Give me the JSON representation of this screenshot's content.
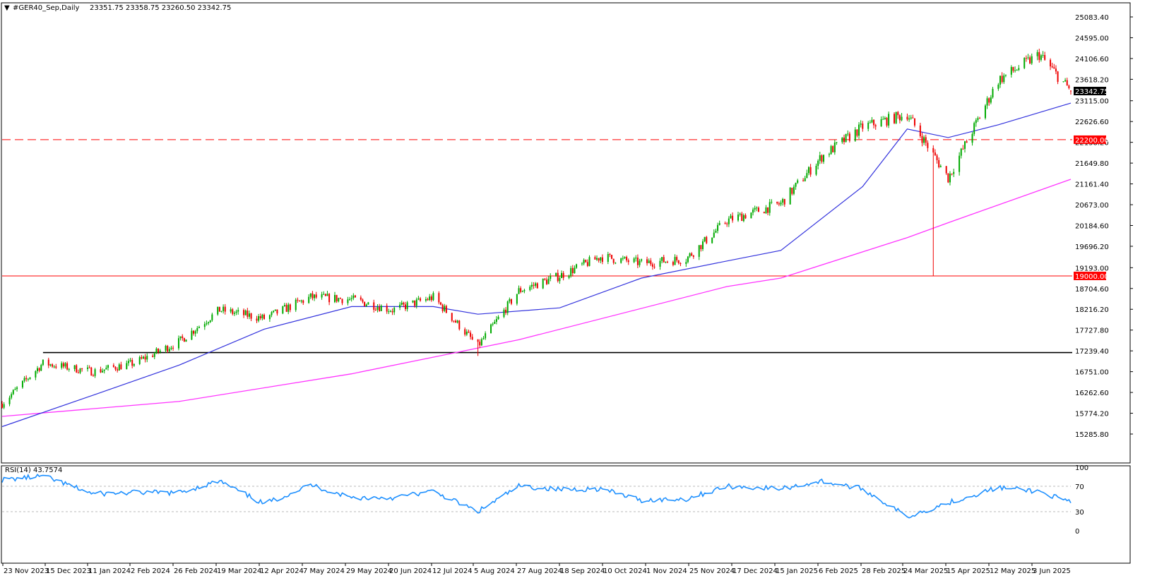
{
  "header": {
    "symbol_title": "#GER40_Sep,Daily",
    "ohlc_text": "23351.75 23358.75 23260.50 23342.75"
  },
  "rsi_title": "RSI(14) 43.7574",
  "price_axis_labels": [
    "25083.40",
    "24595.00",
    "24106.60",
    "23618.20",
    "23115.00",
    "22626.60",
    "22138.20",
    "21649.80",
    "21161.40",
    "20673.00",
    "20184.60",
    "19696.20",
    "19193.00",
    "18704.60",
    "18216.20",
    "17727.80",
    "17239.40",
    "16751.00",
    "16262.60",
    "15774.20",
    "15285.80"
  ],
  "rsi_axis_labels": [
    "100",
    "70",
    "30",
    "0"
  ],
  "date_labels": [
    "23 Nov 2023",
    "15 Dec 2023",
    "11 Jan 2024",
    "2 Feb 2024",
    "26 Feb 2024",
    "19 Mar 2024",
    "12 Apr 2024",
    "7 May 2024",
    "29 May 2024",
    "20 Jun 2024",
    "12 Jul 2024",
    "5 Aug 2024",
    "27 Aug 2024",
    "18 Sep 2024",
    "10 Oct 2024",
    "1 Nov 2024",
    "25 Nov 2024",
    "17 Dec 2024",
    "15 Jan 2025",
    "6 Feb 2025",
    "28 Feb 2025",
    "24 Mar 2025",
    "15 Apr 2025",
    "12 May 2025",
    "3 Jun 2025"
  ],
  "price_tags": {
    "current": "23342.75",
    "level_red_dashed": "22200.00",
    "level_red_solid": "19000.00"
  },
  "colors": {
    "up_candle": "#00aa00",
    "down_candle": "#ee0000",
    "ma_fast": "#3333dd",
    "ma_slow": "#ff33ff",
    "rsi_line": "#1e90ff",
    "level_red": "#ff0000",
    "level_black": "#000000"
  },
  "chart_data": {
    "type": "candlestick",
    "instrument": "#GER40_Sep",
    "timeframe": "Daily",
    "last_bar": {
      "open": 23351.75,
      "high": 23358.75,
      "low": 23260.5,
      "close": 23342.75
    },
    "close_path": [
      {
        "date": "2023-11-23",
        "close": 16000
      },
      {
        "date": "2023-12-15",
        "close": 16950
      },
      {
        "date": "2024-01-11",
        "close": 16750
      },
      {
        "date": "2024-02-02",
        "close": 16950
      },
      {
        "date": "2024-02-26",
        "close": 17450
      },
      {
        "date": "2024-03-19",
        "close": 18200
      },
      {
        "date": "2024-04-12",
        "close": 18000
      },
      {
        "date": "2024-05-07",
        "close": 18500
      },
      {
        "date": "2024-05-29",
        "close": 18450
      },
      {
        "date": "2024-06-20",
        "close": 18200
      },
      {
        "date": "2024-07-12",
        "close": 18500
      },
      {
        "date": "2024-08-05",
        "close": 17350
      },
      {
        "date": "2024-08-27",
        "close": 18650
      },
      {
        "date": "2024-09-18",
        "close": 19000
      },
      {
        "date": "2024-10-10",
        "close": 19450
      },
      {
        "date": "2024-11-01",
        "close": 19300
      },
      {
        "date": "2024-11-25",
        "close": 19400
      },
      {
        "date": "2024-12-17",
        "close": 20300
      },
      {
        "date": "2025-01-15",
        "close": 20700
      },
      {
        "date": "2025-02-06",
        "close": 21800
      },
      {
        "date": "2025-02-28",
        "close": 22500
      },
      {
        "date": "2025-03-24",
        "close": 22800
      },
      {
        "date": "2025-04-15",
        "close": 21300
      },
      {
        "date": "2025-05-12",
        "close": 23600
      },
      {
        "date": "2025-06-03",
        "close": 24200
      },
      {
        "date": "2025-06-20",
        "close": 23342.75
      }
    ],
    "ma_fast": [
      {
        "date": "2023-11-23",
        "value": 15460
      },
      {
        "date": "2024-01-11",
        "value": 16200
      },
      {
        "date": "2024-02-26",
        "value": 16900
      },
      {
        "date": "2024-04-12",
        "value": 17750
      },
      {
        "date": "2024-05-29",
        "value": 18280
      },
      {
        "date": "2024-07-12",
        "value": 18280
      },
      {
        "date": "2024-08-05",
        "value": 18100
      },
      {
        "date": "2024-09-18",
        "value": 18250
      },
      {
        "date": "2024-11-01",
        "value": 18950
      },
      {
        "date": "2024-12-17",
        "value": 19350
      },
      {
        "date": "2025-01-15",
        "value": 19600
      },
      {
        "date": "2025-02-28",
        "value": 21100
      },
      {
        "date": "2025-03-24",
        "value": 22450
      },
      {
        "date": "2025-04-15",
        "value": 22250
      },
      {
        "date": "2025-05-12",
        "value": 22550
      },
      {
        "date": "2025-06-20",
        "value": 23060
      }
    ],
    "ma_slow": [
      {
        "date": "2023-11-23",
        "value": 15700
      },
      {
        "date": "2024-02-26",
        "value": 16050
      },
      {
        "date": "2024-05-29",
        "value": 16700
      },
      {
        "date": "2024-08-27",
        "value": 17500
      },
      {
        "date": "2024-12-17",
        "value": 18750
      },
      {
        "date": "2025-01-15",
        "value": 18950
      },
      {
        "date": "2025-03-24",
        "value": 19900
      },
      {
        "date": "2025-04-15",
        "value": 20250
      },
      {
        "date": "2025-06-20",
        "value": 21270
      }
    ],
    "horizontal_levels": [
      {
        "value": 22200,
        "style": "dashed",
        "color": "red"
      },
      {
        "value": 19000,
        "style": "solid",
        "color": "red"
      },
      {
        "value": 17200,
        "style": "solid",
        "color": "black",
        "from": "2023-12-15"
      }
    ],
    "rsi": {
      "period": 14,
      "last": 43.7574,
      "levels": [
        70,
        30
      ],
      "ylim": [
        0,
        100
      ],
      "path": [
        {
          "date": "2023-11-23",
          "value": 80
        },
        {
          "date": "2023-12-15",
          "value": 86
        },
        {
          "date": "2024-01-11",
          "value": 58
        },
        {
          "date": "2024-02-02",
          "value": 60
        },
        {
          "date": "2024-02-26",
          "value": 60
        },
        {
          "date": "2024-03-19",
          "value": 78
        },
        {
          "date": "2024-04-12",
          "value": 42
        },
        {
          "date": "2024-05-07",
          "value": 72
        },
        {
          "date": "2024-05-29",
          "value": 52
        },
        {
          "date": "2024-06-20",
          "value": 52
        },
        {
          "date": "2024-07-12",
          "value": 62
        },
        {
          "date": "2024-08-05",
          "value": 30
        },
        {
          "date": "2024-08-27",
          "value": 70
        },
        {
          "date": "2024-09-18",
          "value": 65
        },
        {
          "date": "2024-10-10",
          "value": 66
        },
        {
          "date": "2024-11-01",
          "value": 48
        },
        {
          "date": "2024-11-25",
          "value": 50
        },
        {
          "date": "2024-12-17",
          "value": 70
        },
        {
          "date": "2025-01-15",
          "value": 66
        },
        {
          "date": "2025-02-06",
          "value": 78
        },
        {
          "date": "2025-02-28",
          "value": 66
        },
        {
          "date": "2025-03-24",
          "value": 22
        },
        {
          "date": "2025-04-15",
          "value": 44
        },
        {
          "date": "2025-05-12",
          "value": 68
        },
        {
          "date": "2025-06-03",
          "value": 62
        },
        {
          "date": "2025-06-20",
          "value": 43.7574
        }
      ]
    }
  }
}
